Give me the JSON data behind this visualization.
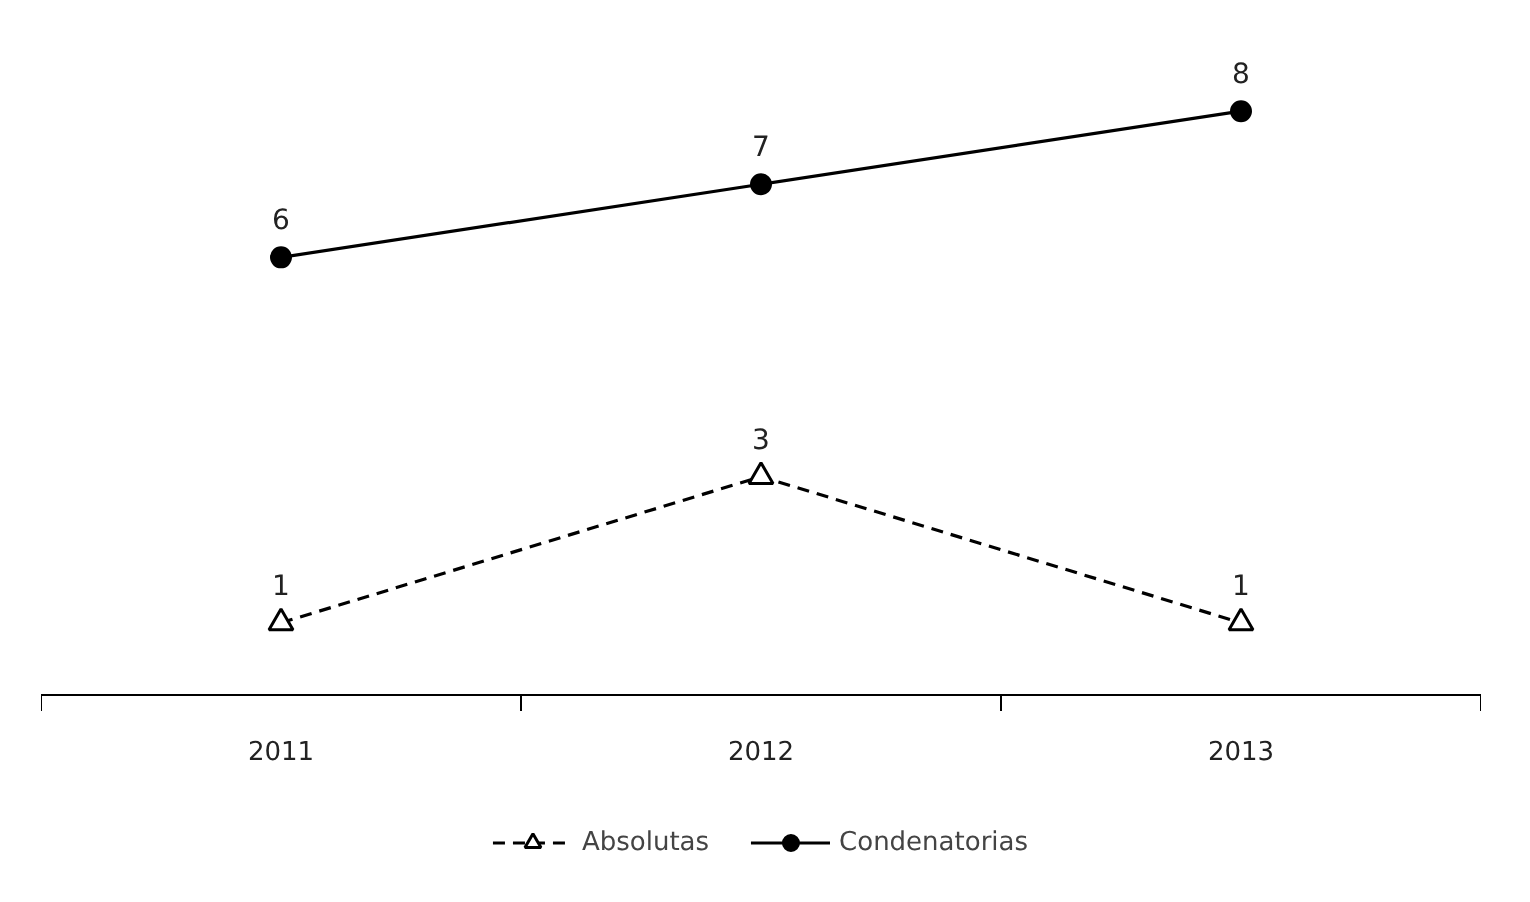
{
  "chart_data": {
    "type": "line",
    "categories": [
      "2011",
      "2012",
      "2013"
    ],
    "data_labels": true,
    "grid": false,
    "legend": "bottom",
    "series": [
      {
        "name": "Absolutas",
        "color": "#000000",
        "values": [
          1,
          3,
          1
        ],
        "marker": "triangle",
        "line_style": "dashed"
      },
      {
        "name": "Condenatorias",
        "color": "#000000",
        "values": [
          6,
          7,
          8
        ],
        "marker": "circle",
        "line_style": "solid"
      }
    ]
  }
}
